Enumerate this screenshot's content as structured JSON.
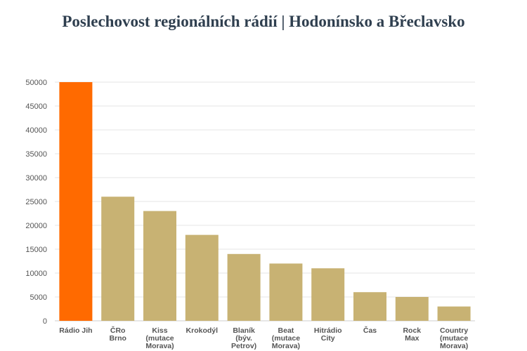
{
  "chart_data": {
    "type": "bar",
    "title": "Poslechovost regionálních rádií | Hodonínsko a Břeclavsko",
    "xlabel": "",
    "ylabel": "",
    "ylim": [
      0,
      50000
    ],
    "yticks": [
      0,
      5000,
      10000,
      15000,
      20000,
      25000,
      30000,
      35000,
      40000,
      45000,
      50000
    ],
    "grid": true,
    "categories": [
      "Rádio Jih",
      "ČRo Brno",
      "Kiss (mutace Morava)",
      "Krokodýl",
      "Blaník (býv. Petrov)",
      "Beat (mutace Morava)",
      "Hitrádio City",
      "Čas",
      "Rock Max",
      "Country (mutace Morava)"
    ],
    "category_lines": [
      [
        "Rádio Jih"
      ],
      [
        "ČRo",
        "Brno"
      ],
      [
        "Kiss",
        "(mutace",
        "Morava)"
      ],
      [
        "Krokodýl"
      ],
      [
        "Blaník",
        "(býv.",
        "Petrov)"
      ],
      [
        "Beat",
        "(mutace",
        "Morava)"
      ],
      [
        "Hitrádio",
        "City"
      ],
      [
        "Čas"
      ],
      [
        "Rock",
        "Max"
      ],
      [
        "Country",
        "(mutace",
        "Morava)"
      ]
    ],
    "values": [
      50000,
      26000,
      23000,
      18000,
      14000,
      12000,
      11000,
      6000,
      5000,
      3000
    ],
    "colors": {
      "highlight": "#ff6a00",
      "default": "#c8b273",
      "grid": "#e6e6e6",
      "axis": "#cccccc"
    },
    "highlight_index": 0
  }
}
